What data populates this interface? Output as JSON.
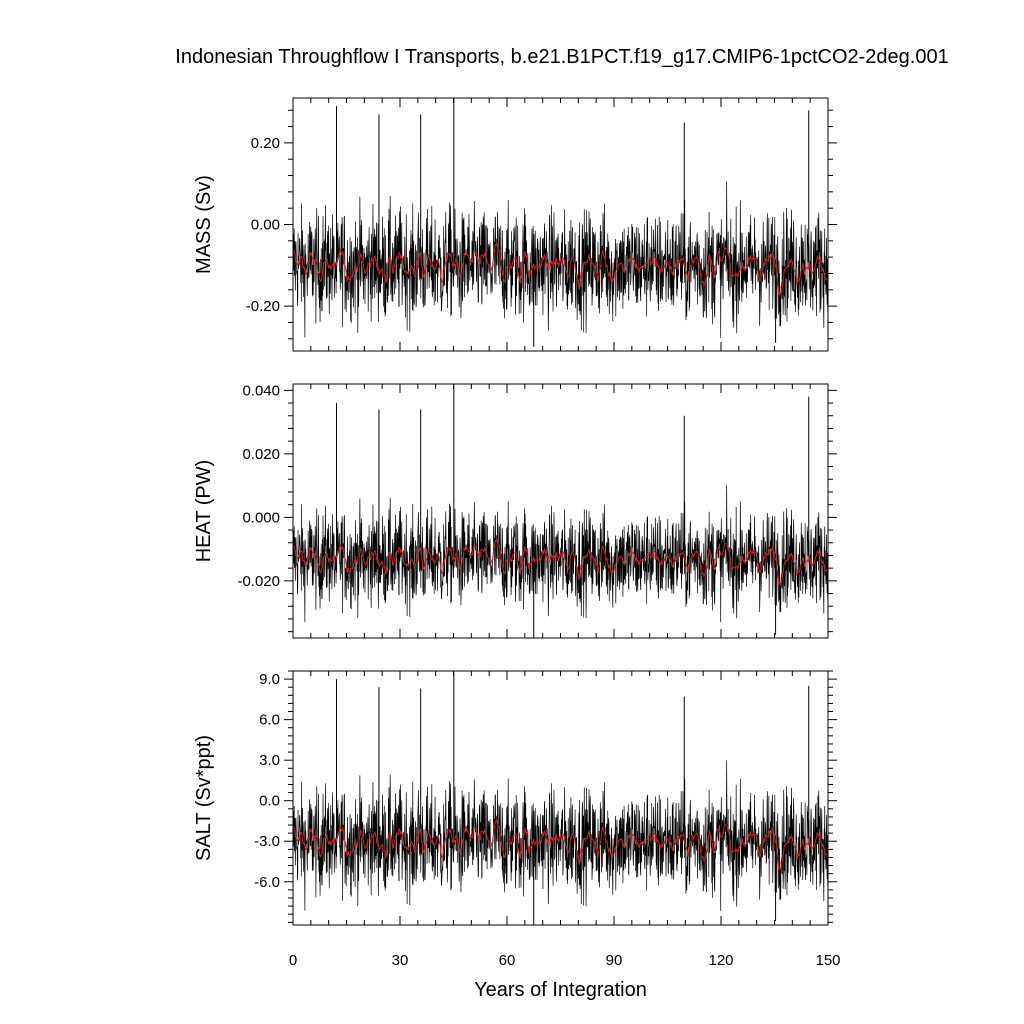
{
  "title": "Indonesian Throughflow I Transports, b.e21.B1PCT.f19_g17.CMIP6-1pctCO2-2deg.001",
  "colors": {
    "monthly": "#000000",
    "smoothed": "#d62020",
    "frame": "#000000"
  },
  "chart_data": [
    {
      "type": "line",
      "panel": "mass",
      "ylabel": "MASS (Sv)",
      "xlim": [
        0,
        150
      ],
      "ylim": [
        -0.31,
        0.31
      ],
      "yticks": [
        -0.2,
        0.0,
        0.2
      ],
      "ytick_labels": [
        "-0.20",
        "0.00",
        "0.20"
      ],
      "xticks": [
        0,
        30,
        60,
        90,
        120,
        150
      ],
      "mean": -0.1,
      "spread_low": -0.26,
      "spread_high": 0.05,
      "spikes": [
        {
          "x": 12.2,
          "y": 0.29
        },
        {
          "x": 24.1,
          "y": 0.27
        },
        {
          "x": 35.8,
          "y": 0.27
        },
        {
          "x": 45.1,
          "y": 0.31
        },
        {
          "x": 67.5,
          "y": -0.3
        },
        {
          "x": 109.7,
          "y": 0.25
        },
        {
          "x": 144.6,
          "y": 0.28
        },
        {
          "x": 135.3,
          "y": -0.29
        }
      ],
      "series": [
        {
          "name": "",
          "style": "monthly",
          "description_hidden": true
        },
        {
          "name": "",
          "style": "smoothed"
        }
      ]
    },
    {
      "type": "line",
      "panel": "heat",
      "ylabel": "HEAT (PW)",
      "xlim": [
        0,
        150
      ],
      "ylim": [
        -0.038,
        0.042
      ],
      "yticks": [
        -0.02,
        0.0,
        0.02,
        0.04
      ],
      "ytick_labels": [
        "-0.020",
        "0.000",
        "0.020",
        "0.040"
      ],
      "xticks": [
        0,
        30,
        60,
        90,
        120,
        150
      ],
      "mean": -0.013,
      "spread_low": -0.031,
      "spread_high": 0.004,
      "spikes": [
        {
          "x": 12.2,
          "y": 0.036
        },
        {
          "x": 24.1,
          "y": 0.034
        },
        {
          "x": 35.8,
          "y": 0.034
        },
        {
          "x": 45.1,
          "y": 0.042
        },
        {
          "x": 67.5,
          "y": -0.038
        },
        {
          "x": 109.7,
          "y": 0.032
        },
        {
          "x": 144.6,
          "y": 0.038
        },
        {
          "x": 135.3,
          "y": -0.037
        }
      ],
      "series": [
        {
          "name": "",
          "style": "monthly"
        },
        {
          "name": "",
          "style": "smoothed"
        }
      ]
    },
    {
      "type": "line",
      "panel": "salt",
      "ylabel": "SALT (Sv*ppt)",
      "xlim": [
        0,
        150
      ],
      "ylim": [
        -9.2,
        9.6
      ],
      "yticks": [
        -6.0,
        -3.0,
        0.0,
        3.0,
        6.0,
        9.0
      ],
      "ytick_labels": [
        "-6.0",
        "-3.0",
        "0.0",
        "3.0",
        "6.0",
        "9.0"
      ],
      "xticks": [
        0,
        30,
        60,
        90,
        120,
        150
      ],
      "xtick_labels": [
        "0",
        "30",
        "60",
        "90",
        "120",
        "150"
      ],
      "xlabel": "Years of Integration",
      "mean": -3.0,
      "spread_low": -7.5,
      "spread_high": 1.5,
      "spikes": [
        {
          "x": 12.2,
          "y": 9.0
        },
        {
          "x": 24.1,
          "y": 8.4
        },
        {
          "x": 35.8,
          "y": 8.3
        },
        {
          "x": 45.1,
          "y": 9.5
        },
        {
          "x": 67.5,
          "y": -9.2
        },
        {
          "x": 109.7,
          "y": 7.7
        },
        {
          "x": 144.6,
          "y": 8.5
        },
        {
          "x": 135.3,
          "y": -8.9
        }
      ],
      "series": [
        {
          "name": "",
          "style": "monthly"
        },
        {
          "name": "",
          "style": "smoothed"
        }
      ]
    }
  ]
}
